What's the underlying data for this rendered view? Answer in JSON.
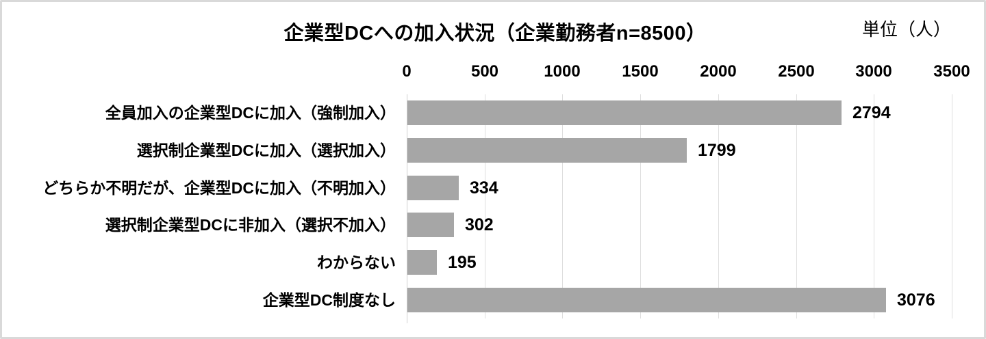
{
  "chart_data": {
    "type": "bar",
    "orientation": "horizontal",
    "title": "企業型DCへの加入状況（企業勤務者n=8500）",
    "unit_label": "単位（人）",
    "categories": [
      "全員加入の企業型DCに加入（強制加入）",
      "選択制企業型DCに加入（選択加入）",
      "どちらか不明だが、企業型DCに加入（不明加入）",
      "選択制企業型DCに非加入（選択不加入）",
      "わからない",
      "企業型DC制度なし"
    ],
    "values": [
      2794,
      1799,
      334,
      302,
      195,
      3076
    ],
    "data_labels": [
      "2794",
      "1799",
      "334",
      "302",
      "195",
      "3076"
    ],
    "xlim": [
      0,
      3500
    ],
    "x_ticks": [
      0,
      500,
      1000,
      1500,
      2000,
      2500,
      3000,
      3500
    ],
    "grid": true,
    "legend": "none",
    "bar_color": "#a6a6a6",
    "gridline_color": "#dedede",
    "frame_border_color": "#d9d9d9",
    "text_color": "#000000"
  }
}
